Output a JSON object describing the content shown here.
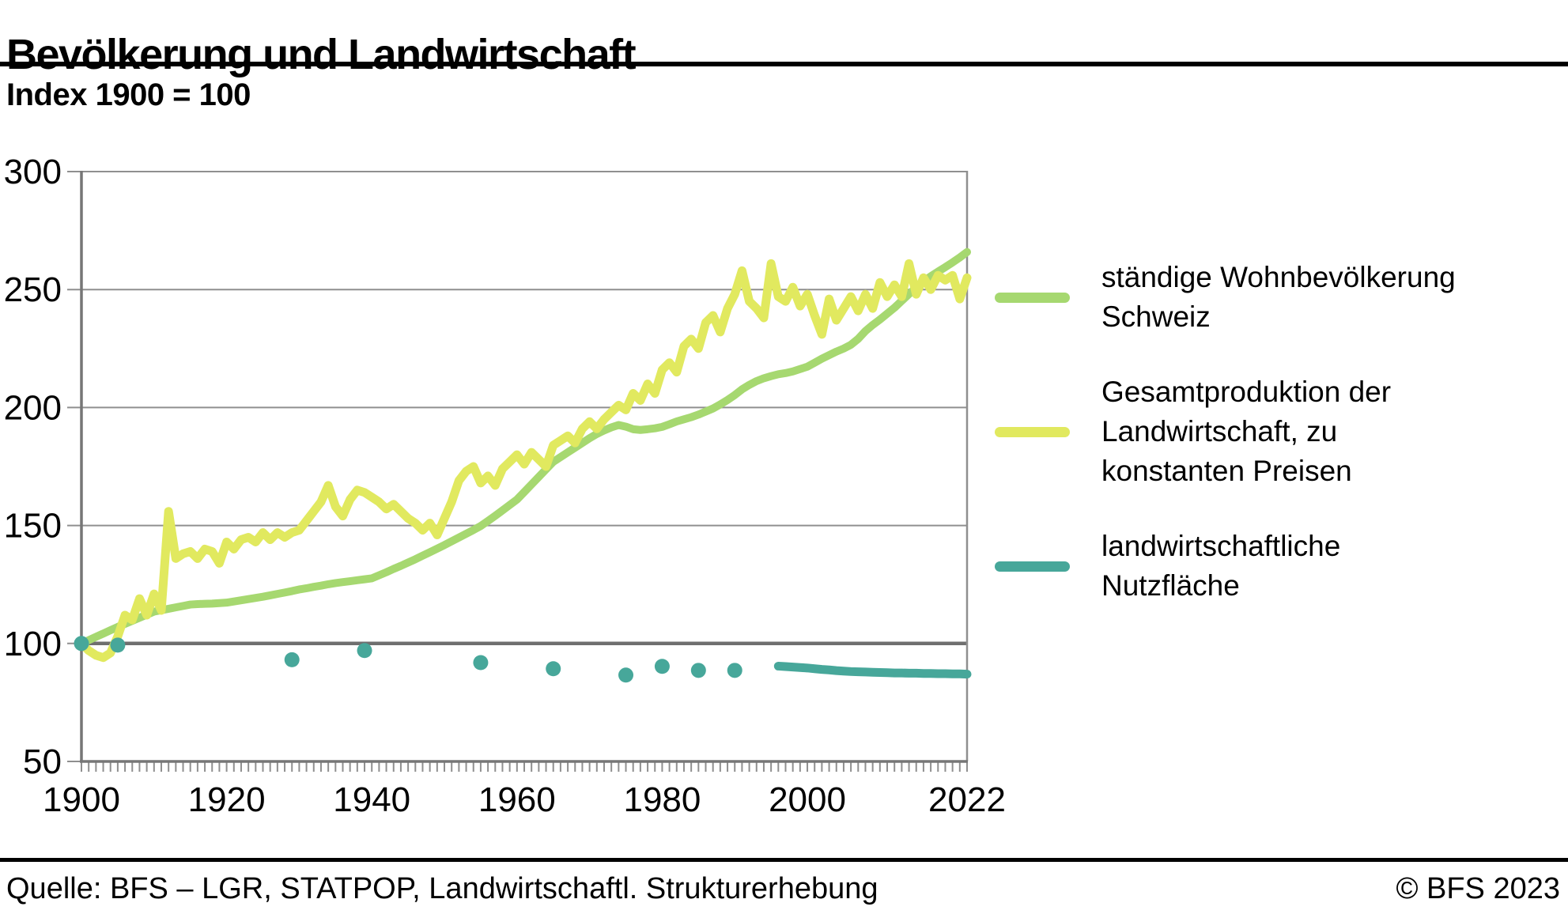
{
  "header": {
    "title": "Bevölkerung und Landwirtschaft",
    "index_label": "Index 1900 = 100"
  },
  "legend": {
    "items": [
      {
        "label": "ständige Wohnbevölkerung\nSchweiz",
        "color": "#a6d870"
      },
      {
        "label": "Gesamtproduktion der\nLandwirtschaft, zu\nkonstanten Preisen",
        "color": "#e1e95f"
      },
      {
        "label": "landwirtschaftliche\nNutzfläche",
        "color": "#47a79a"
      }
    ]
  },
  "footer": {
    "source": "Quelle: BFS – LGR, STATPOP, Landwirtschaftl. Strukturerhebung",
    "copyright": "© BFS 2023"
  },
  "chart_data": {
    "type": "line",
    "title": "Bevölkerung und Landwirtschaft",
    "subtitle": "Index 1900 = 100",
    "xlabel": "",
    "ylabel": "Index 1900 = 100",
    "x_range": [
      1900,
      2022
    ],
    "y_range": [
      50,
      300
    ],
    "x_ticks": [
      1900,
      1920,
      1940,
      1960,
      1980,
      2000,
      2022
    ],
    "y_ticks": [
      50,
      100,
      150,
      200,
      250,
      300
    ],
    "baseline_value": 100,
    "grid": true,
    "legend_position": "right",
    "colors": {
      "grid": "#8f8f8f",
      "baseline": "#6f6f6f",
      "axis": "#767676"
    },
    "series": [
      {
        "name": "ständige Wohnbevölkerung Schweiz",
        "color": "#a6d870",
        "stroke_width": 10,
        "line": {
          "x_start": 1900,
          "values": [
            100.0,
            101.4,
            102.8,
            104.2,
            105.6,
            107.0,
            108.3,
            109.6,
            110.9,
            112.2,
            113.5,
            114.1,
            114.7,
            115.3,
            115.9,
            116.5,
            116.7,
            116.8,
            116.9,
            117.1,
            117.3,
            117.8,
            118.3,
            118.8,
            119.3,
            119.8,
            120.4,
            121.0,
            121.6,
            122.2,
            122.9,
            123.4,
            124.0,
            124.5,
            125.1,
            125.6,
            126.0,
            126.4,
            126.8,
            127.2,
            127.6,
            128.9,
            130.2,
            131.6,
            132.9,
            134.3,
            135.7,
            137.2,
            138.7,
            140.2,
            141.7,
            143.3,
            144.9,
            146.5,
            148.1,
            149.8,
            151.9,
            154.1,
            156.4,
            158.7,
            161.0,
            164.2,
            167.4,
            170.6,
            173.8,
            177.0,
            179.0,
            181.0,
            183.0,
            185.0,
            187.0,
            188.8,
            190.3,
            191.6,
            192.6,
            191.9,
            190.8,
            190.5,
            190.8,
            191.2,
            191.8,
            192.9,
            194.1,
            195.0,
            195.9,
            197.0,
            198.3,
            199.6,
            201.3,
            203.2,
            205.3,
            207.7,
            209.6,
            211.2,
            212.4,
            213.3,
            214.1,
            214.6,
            215.3,
            216.3,
            217.3,
            219.0,
            220.7,
            222.2,
            223.7,
            225.0,
            226.6,
            229.1,
            232.4,
            235.0,
            237.3,
            239.8,
            242.3,
            245.2,
            248.1,
            250.8,
            253.5,
            255.6,
            257.6,
            259.5,
            261.5,
            263.6,
            265.9
          ]
        }
      },
      {
        "name": "Gesamtproduktion der Landwirtschaft, zu konstanten Preisen",
        "color": "#e1e95f",
        "stroke_width": 11,
        "line": {
          "x_start": 1900,
          "values": [
            100,
            97,
            95,
            94,
            96,
            103,
            112,
            110,
            119,
            112,
            121,
            114,
            156,
            136,
            138,
            139,
            136,
            140,
            139,
            134,
            143,
            140,
            144,
            145,
            143,
            147,
            144,
            147,
            145,
            147,
            148,
            152,
            156,
            160,
            167,
            158,
            154,
            161,
            165,
            164,
            162,
            160,
            157,
            159,
            156,
            153,
            151,
            148,
            151,
            146,
            153,
            160,
            169,
            173,
            175,
            168,
            171,
            167,
            174,
            177,
            180,
            176,
            181,
            178,
            175,
            184,
            186,
            188,
            185,
            191,
            194,
            191,
            195,
            198,
            201,
            199,
            206,
            203,
            210,
            206,
            216,
            219,
            215,
            226,
            229,
            225,
            236,
            239,
            232,
            242,
            248,
            258,
            245,
            242,
            238,
            261,
            247,
            245,
            251,
            243,
            248,
            239,
            231,
            246,
            237,
            242,
            247,
            241,
            248,
            242,
            253,
            247,
            252,
            247,
            261,
            248,
            255,
            250,
            256,
            254,
            256,
            246,
            255
          ]
        }
      },
      {
        "name": "landwirtschaftliche Nutzfläche",
        "color": "#47a79a",
        "stroke_width": 11,
        "dot_radius": 9.5,
        "points": {
          "x": [
            1900,
            1905,
            1929,
            1939,
            1955,
            1965,
            1975,
            1980,
            1985,
            1990
          ],
          "values": [
            100,
            99.3,
            93.1,
            97.0,
            91.9,
            89.3,
            86.6,
            90.3,
            88.6,
            88.6
          ]
        },
        "line": {
          "x_start": 1996,
          "values": [
            90.4,
            90.2,
            90.0,
            89.8,
            89.6,
            89.3,
            89.0,
            88.8,
            88.5,
            88.3,
            88.1,
            88.0,
            87.9,
            87.8,
            87.7,
            87.6,
            87.5,
            87.5,
            87.4,
            87.4,
            87.3,
            87.3,
            87.2,
            87.2,
            87.1,
            87.1,
            87.0
          ]
        }
      }
    ]
  }
}
